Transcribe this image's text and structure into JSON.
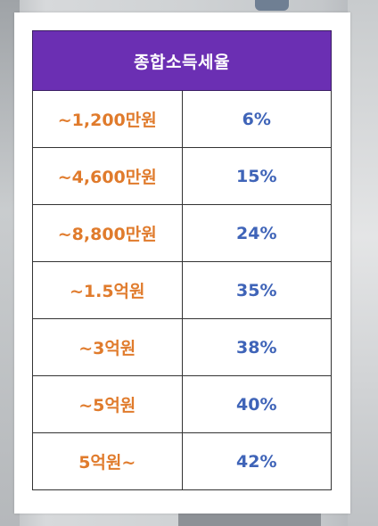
{
  "table": {
    "title": "종합소득세율",
    "rows": [
      {
        "range": "~1,200만원",
        "rate": "6%"
      },
      {
        "range": "~4,600만원",
        "rate": "15%"
      },
      {
        "range": "~8,800만원",
        "rate": "24%"
      },
      {
        "range": "~1.5억원",
        "rate": "35%"
      },
      {
        "range": "~3억원",
        "rate": "38%"
      },
      {
        "range": "~5억원",
        "rate": "40%"
      },
      {
        "range": "5억원~",
        "rate": "42%"
      }
    ]
  },
  "colors": {
    "header_bg": "#6b2fb3",
    "range_text": "#e07b2c",
    "rate_text": "#3f64b8"
  }
}
